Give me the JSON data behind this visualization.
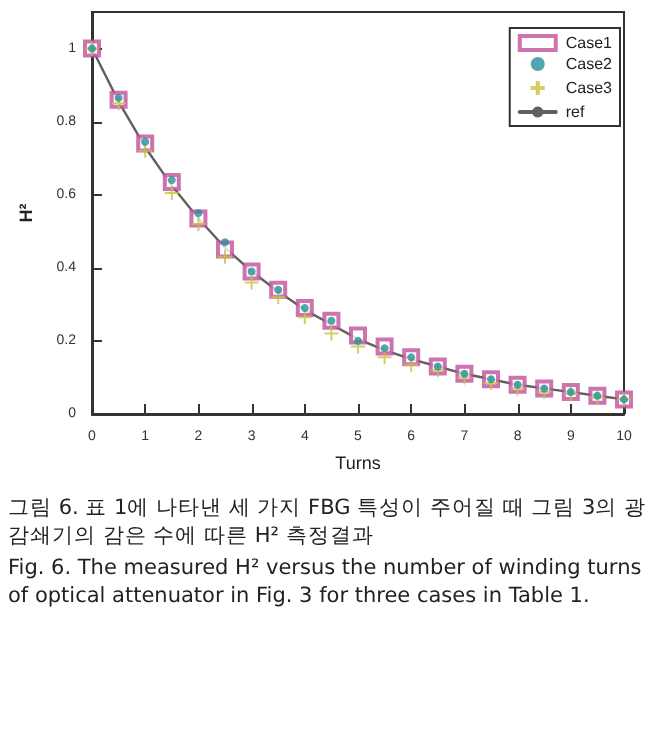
{
  "chart_data": {
    "type": "scatter",
    "xlabel": "Turns",
    "ylabel": "H²",
    "x": [
      0,
      0.5,
      1,
      1.5,
      2,
      2.5,
      3,
      3.5,
      4,
      4.5,
      5,
      5.5,
      6,
      6.5,
      7,
      7.5,
      8,
      8.5,
      9,
      9.5,
      10
    ],
    "series": [
      {
        "name": "Case1",
        "color": "#c0509a",
        "marker": "square",
        "values": [
          1.0,
          0.86,
          0.74,
          0.635,
          0.535,
          0.45,
          0.39,
          0.34,
          0.29,
          0.255,
          0.215,
          0.185,
          0.155,
          0.13,
          0.11,
          0.095,
          0.08,
          0.07,
          0.06,
          0.05,
          0.04
        ]
      },
      {
        "name": "Case2",
        "color": "#2a8f9a",
        "marker": "circle",
        "values": [
          1.0,
          0.865,
          0.745,
          0.64,
          0.55,
          0.47,
          0.39,
          0.34,
          0.29,
          0.255,
          0.2,
          0.18,
          0.155,
          0.13,
          0.11,
          0.095,
          0.08,
          0.07,
          0.06,
          0.05,
          0.04
        ]
      },
      {
        "name": "Case3",
        "color": "#c8c040",
        "marker": "cross",
        "values": [
          1.0,
          0.85,
          0.72,
          0.605,
          0.52,
          0.43,
          0.36,
          0.32,
          0.265,
          0.22,
          0.185,
          0.155,
          0.135,
          0.12,
          0.1,
          0.085,
          0.07,
          0.06,
          0.055,
          0.045,
          0.04
        ]
      },
      {
        "name": "ref",
        "type": "line",
        "color": "#606060",
        "marker": "none",
        "line_style": "solid",
        "values": [
          1.0,
          0.855,
          0.73,
          0.625,
          0.535,
          0.455,
          0.39,
          0.335,
          0.285,
          0.245,
          0.205,
          0.175,
          0.15,
          0.13,
          0.11,
          0.095,
          0.08,
          0.07,
          0.06,
          0.05,
          0.04
        ]
      }
    ],
    "xlim": [
      0,
      10
    ],
    "xticks": [
      0,
      1,
      2,
      3,
      4,
      5,
      6,
      7,
      8,
      9,
      10
    ],
    "ylim": [
      0,
      1.1
    ],
    "yticks": [
      0,
      0.2,
      0.4,
      0.6,
      0.8,
      1
    ],
    "grid": false,
    "legend": "top right",
    "annotations": [
      "그림 6. 표 1에 나타낸 세 가지 FBG 특성이 주어질 때 그림 3의 광 감쇄기의 감은 수에 따른 H² 측정결과",
      "Fig. 6. The measured H² versus the number of winding turns of optical attenuator in Fig. 3 for three cases in Table 1."
    ]
  }
}
